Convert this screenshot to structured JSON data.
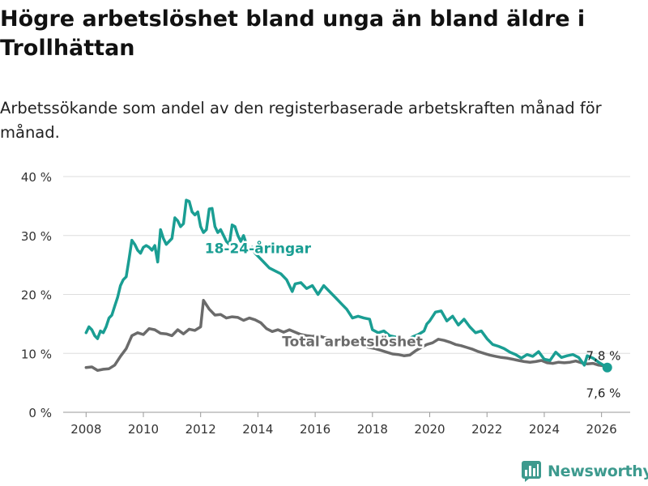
{
  "title": "Högre arbetslöshet bland unga än bland äldre i Trollhättan",
  "subtitle": "Arbetssökande som andel av den registerbaserade arbetskraften månad för månad.",
  "brand": {
    "name": "Newsworthy",
    "icon": "bar-chart-icon",
    "color": "#3d9a8e"
  },
  "chart_data": {
    "type": "line",
    "title": "Högre arbetslöshet bland unga än bland äldre i Trollhättan",
    "xlabel": "",
    "ylabel": "",
    "xlim": [
      2007.2,
      2027.0
    ],
    "ylim": [
      0,
      40
    ],
    "x_ticks": [
      2008,
      2010,
      2012,
      2014,
      2016,
      2018,
      2020,
      2022,
      2024,
      2026
    ],
    "x_tick_labels": [
      "2008",
      "2010",
      "2012",
      "2014",
      "2016",
      "2018",
      "2020",
      "2022",
      "2024",
      "2026"
    ],
    "y_ticks": [
      0,
      10,
      20,
      30,
      40
    ],
    "y_tick_labels": [
      "0 %",
      "10 %",
      "20 %",
      "30 %",
      "40 %"
    ],
    "grid": true,
    "series": [
      {
        "name": "18-24-åringar",
        "label": "18-24-åringar",
        "color": "#1a9e93",
        "points": [
          [
            2008.0,
            13.5
          ],
          [
            2008.1,
            14.5
          ],
          [
            2008.2,
            14.0
          ],
          [
            2008.3,
            13.0
          ],
          [
            2008.4,
            12.5
          ],
          [
            2008.5,
            13.8
          ],
          [
            2008.6,
            13.5
          ],
          [
            2008.7,
            14.5
          ],
          [
            2008.8,
            16.0
          ],
          [
            2008.9,
            16.5
          ],
          [
            2009.0,
            18.0
          ],
          [
            2009.1,
            19.5
          ],
          [
            2009.2,
            21.5
          ],
          [
            2009.3,
            22.5
          ],
          [
            2009.4,
            23.0
          ],
          [
            2009.5,
            26.0
          ],
          [
            2009.6,
            29.2
          ],
          [
            2009.7,
            28.5
          ],
          [
            2009.8,
            27.5
          ],
          [
            2009.9,
            27.0
          ],
          [
            2010.0,
            28.0
          ],
          [
            2010.1,
            28.3
          ],
          [
            2010.2,
            28.0
          ],
          [
            2010.3,
            27.5
          ],
          [
            2010.4,
            28.3
          ],
          [
            2010.5,
            25.5
          ],
          [
            2010.6,
            31.0
          ],
          [
            2010.7,
            29.5
          ],
          [
            2010.8,
            28.5
          ],
          [
            2010.9,
            29.0
          ],
          [
            2011.0,
            29.5
          ],
          [
            2011.1,
            33.0
          ],
          [
            2011.2,
            32.5
          ],
          [
            2011.3,
            31.5
          ],
          [
            2011.4,
            32.0
          ],
          [
            2011.5,
            36.0
          ],
          [
            2011.6,
            35.8
          ],
          [
            2011.7,
            34.0
          ],
          [
            2011.8,
            33.5
          ],
          [
            2011.9,
            34.0
          ],
          [
            2012.0,
            31.5
          ],
          [
            2012.1,
            30.5
          ],
          [
            2012.2,
            31.0
          ],
          [
            2012.3,
            34.5
          ],
          [
            2012.4,
            34.6
          ],
          [
            2012.5,
            31.5
          ],
          [
            2012.6,
            30.5
          ],
          [
            2012.7,
            31.0
          ],
          [
            2012.8,
            30.0
          ],
          [
            2012.9,
            29.0
          ],
          [
            2013.0,
            28.5
          ],
          [
            2013.1,
            31.8
          ],
          [
            2013.2,
            31.5
          ],
          [
            2013.3,
            30.0
          ],
          [
            2013.4,
            29.0
          ],
          [
            2013.5,
            30.0
          ],
          [
            2013.6,
            28.5
          ],
          [
            2013.7,
            27.5
          ],
          [
            2013.8,
            28.0
          ],
          [
            2013.9,
            27.0
          ],
          [
            2014.0,
            26.5
          ],
          [
            2014.2,
            25.5
          ],
          [
            2014.4,
            24.5
          ],
          [
            2014.6,
            24.0
          ],
          [
            2014.8,
            23.5
          ],
          [
            2015.0,
            22.5
          ],
          [
            2015.2,
            20.5
          ],
          [
            2015.3,
            21.8
          ],
          [
            2015.5,
            22.0
          ],
          [
            2015.7,
            21.0
          ],
          [
            2015.9,
            21.5
          ],
          [
            2016.1,
            20.0
          ],
          [
            2016.3,
            21.5
          ],
          [
            2016.5,
            20.5
          ],
          [
            2016.7,
            19.5
          ],
          [
            2016.9,
            18.5
          ],
          [
            2017.1,
            17.5
          ],
          [
            2017.3,
            16.0
          ],
          [
            2017.5,
            16.3
          ],
          [
            2017.7,
            16.0
          ],
          [
            2017.9,
            15.8
          ],
          [
            2018.0,
            14.0
          ],
          [
            2018.2,
            13.5
          ],
          [
            2018.4,
            13.8
          ],
          [
            2018.6,
            13.0
          ],
          [
            2018.8,
            12.8
          ],
          [
            2019.0,
            12.0
          ],
          [
            2019.2,
            12.2
          ],
          [
            2019.4,
            12.8
          ],
          [
            2019.6,
            13.2
          ],
          [
            2019.8,
            13.8
          ],
          [
            2019.9,
            15.0
          ],
          [
            2020.0,
            15.5
          ],
          [
            2020.2,
            17.0
          ],
          [
            2020.4,
            17.2
          ],
          [
            2020.6,
            15.5
          ],
          [
            2020.8,
            16.3
          ],
          [
            2021.0,
            14.8
          ],
          [
            2021.2,
            15.8
          ],
          [
            2021.4,
            14.5
          ],
          [
            2021.6,
            13.5
          ],
          [
            2021.8,
            13.8
          ],
          [
            2022.0,
            12.5
          ],
          [
            2022.2,
            11.5
          ],
          [
            2022.4,
            11.2
          ],
          [
            2022.6,
            10.8
          ],
          [
            2022.8,
            10.2
          ],
          [
            2023.0,
            9.8
          ],
          [
            2023.2,
            9.2
          ],
          [
            2023.4,
            9.8
          ],
          [
            2023.6,
            9.5
          ],
          [
            2023.8,
            10.3
          ],
          [
            2024.0,
            9.0
          ],
          [
            2024.2,
            8.8
          ],
          [
            2024.4,
            10.2
          ],
          [
            2024.6,
            9.3
          ],
          [
            2024.8,
            9.6
          ],
          [
            2025.0,
            9.8
          ],
          [
            2025.2,
            9.3
          ],
          [
            2025.4,
            8.0
          ],
          [
            2025.5,
            9.6
          ],
          [
            2025.7,
            9.2
          ],
          [
            2025.9,
            8.5
          ],
          [
            2026.2,
            7.6
          ]
        ]
      },
      {
        "name": "Total arbetslöshet",
        "label": "Total arbetslöshet",
        "color": "#6b6b6b",
        "points": [
          [
            2008.0,
            7.6
          ],
          [
            2008.2,
            7.7
          ],
          [
            2008.4,
            7.1
          ],
          [
            2008.6,
            7.3
          ],
          [
            2008.8,
            7.4
          ],
          [
            2009.0,
            8.0
          ],
          [
            2009.2,
            9.5
          ],
          [
            2009.4,
            10.8
          ],
          [
            2009.6,
            13.0
          ],
          [
            2009.8,
            13.5
          ],
          [
            2010.0,
            13.2
          ],
          [
            2010.2,
            14.2
          ],
          [
            2010.4,
            14.0
          ],
          [
            2010.6,
            13.4
          ],
          [
            2010.8,
            13.3
          ],
          [
            2011.0,
            13.0
          ],
          [
            2011.2,
            14.0
          ],
          [
            2011.4,
            13.3
          ],
          [
            2011.6,
            14.1
          ],
          [
            2011.8,
            13.9
          ],
          [
            2012.0,
            14.5
          ],
          [
            2012.1,
            19.0
          ],
          [
            2012.3,
            17.5
          ],
          [
            2012.5,
            16.5
          ],
          [
            2012.7,
            16.6
          ],
          [
            2012.9,
            16.0
          ],
          [
            2013.1,
            16.2
          ],
          [
            2013.3,
            16.1
          ],
          [
            2013.5,
            15.6
          ],
          [
            2013.7,
            16.0
          ],
          [
            2013.9,
            15.7
          ],
          [
            2014.1,
            15.2
          ],
          [
            2014.3,
            14.2
          ],
          [
            2014.5,
            13.7
          ],
          [
            2014.7,
            14.0
          ],
          [
            2014.9,
            13.6
          ],
          [
            2015.1,
            14.0
          ],
          [
            2015.3,
            13.6
          ],
          [
            2015.5,
            13.2
          ],
          [
            2015.7,
            13.0
          ],
          [
            2015.9,
            12.9
          ],
          [
            2016.1,
            13.0
          ],
          [
            2016.3,
            12.7
          ],
          [
            2016.5,
            12.5
          ],
          [
            2016.7,
            12.2
          ],
          [
            2016.9,
            12.0
          ],
          [
            2017.1,
            12.1
          ],
          [
            2017.3,
            11.8
          ],
          [
            2017.5,
            11.5
          ],
          [
            2017.7,
            11.2
          ],
          [
            2017.9,
            11.0
          ],
          [
            2018.1,
            10.8
          ],
          [
            2018.3,
            10.5
          ],
          [
            2018.5,
            10.2
          ],
          [
            2018.7,
            9.9
          ],
          [
            2018.9,
            9.8
          ],
          [
            2019.1,
            9.6
          ],
          [
            2019.3,
            9.7
          ],
          [
            2019.5,
            10.4
          ],
          [
            2019.7,
            11.0
          ],
          [
            2019.9,
            11.5
          ],
          [
            2020.1,
            11.8
          ],
          [
            2020.3,
            12.4
          ],
          [
            2020.5,
            12.2
          ],
          [
            2020.7,
            11.9
          ],
          [
            2020.9,
            11.5
          ],
          [
            2021.1,
            11.3
          ],
          [
            2021.3,
            11.0
          ],
          [
            2021.5,
            10.7
          ],
          [
            2021.7,
            10.3
          ],
          [
            2021.9,
            10.0
          ],
          [
            2022.1,
            9.7
          ],
          [
            2022.3,
            9.5
          ],
          [
            2022.5,
            9.3
          ],
          [
            2022.7,
            9.2
          ],
          [
            2022.9,
            9.0
          ],
          [
            2023.1,
            8.8
          ],
          [
            2023.3,
            8.6
          ],
          [
            2023.5,
            8.5
          ],
          [
            2023.7,
            8.6
          ],
          [
            2023.9,
            8.8
          ],
          [
            2024.1,
            8.4
          ],
          [
            2024.3,
            8.3
          ],
          [
            2024.5,
            8.5
          ],
          [
            2024.7,
            8.4
          ],
          [
            2024.9,
            8.5
          ],
          [
            2025.1,
            8.7
          ],
          [
            2025.3,
            8.4
          ],
          [
            2025.5,
            8.2
          ],
          [
            2025.7,
            8.3
          ],
          [
            2025.9,
            8.0
          ],
          [
            2026.2,
            7.8
          ]
        ]
      }
    ],
    "labels": {
      "youth": {
        "text": "18-24-åringar",
        "x": 2014.0,
        "y": 27.0
      },
      "total": {
        "text": "Total arbetslöshet",
        "x": 2017.3,
        "y": 11.2
      }
    },
    "end_labels": [
      {
        "text": "7,8 %",
        "value": 7.8,
        "series": "Total arbetslöshet"
      },
      {
        "text": "7,6 %",
        "value": 7.6,
        "series": "18-24-åringar"
      }
    ]
  }
}
